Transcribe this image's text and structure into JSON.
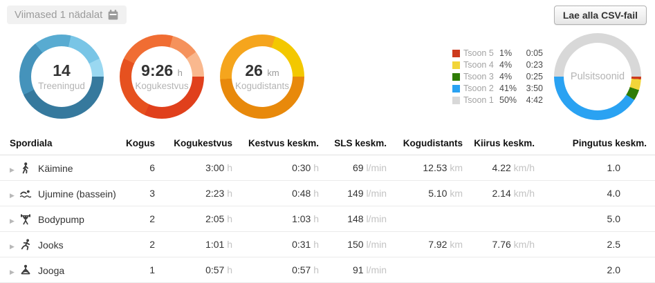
{
  "toolbar": {
    "period_label": "Viimased 1 nädalat",
    "download_button": "Lae alla CSV-fail"
  },
  "summary_donuts": [
    {
      "id": "trainings",
      "value": "14",
      "unit": "",
      "label": "Treeningud",
      "segments": [
        {
          "pct": 42.9,
          "color": "#36799d"
        },
        {
          "pct": 21.4,
          "color": "#4593bb"
        },
        {
          "pct": 14.3,
          "color": "#58abd1"
        },
        {
          "pct": 14.3,
          "color": "#79c5e6"
        },
        {
          "pct": 7.1,
          "color": "#9ad8f1"
        }
      ]
    },
    {
      "id": "total-duration",
      "value": "9:26",
      "unit": "h",
      "label": "Kogukestvus",
      "segments": [
        {
          "pct": 31.8,
          "color": "#e0401c"
        },
        {
          "pct": 25.3,
          "color": "#e6511f"
        },
        {
          "pct": 22.1,
          "color": "#f06d33"
        },
        {
          "pct": 10.8,
          "color": "#f5925c"
        },
        {
          "pct": 10.0,
          "color": "#f9b88e"
        }
      ]
    },
    {
      "id": "total-distance",
      "value": "26",
      "unit": "km",
      "label": "Kogudistants",
      "segments": [
        {
          "pct": 49.0,
          "color": "#e8890b"
        },
        {
          "pct": 31.0,
          "color": "#f5a51d"
        },
        {
          "pct": 20.0,
          "color": "#f3c800"
        }
      ]
    }
  ],
  "pulse_zones": {
    "label": "Pulsitsoonid",
    "zones": [
      {
        "name": "Tsoon 5",
        "pct": "1%",
        "time": "0:05",
        "color": "#cd3a1d"
      },
      {
        "name": "Tsoon 4",
        "pct": "4%",
        "time": "0:23",
        "color": "#f2d53a"
      },
      {
        "name": "Tsoon 3",
        "pct": "4%",
        "time": "0:25",
        "color": "#2e7c05"
      },
      {
        "name": "Tsoon 2",
        "pct": "41%",
        "time": "3:50",
        "color": "#2aa2f2"
      },
      {
        "name": "Tsoon 1",
        "pct": "50%",
        "time": "4:42",
        "color": "#d8d8d8"
      }
    ]
  },
  "table": {
    "columns": [
      "Spordiala",
      "Kogus",
      "Kogukestvus",
      "Kestvus keskm.",
      "SLS keskm.",
      "Kogudistants",
      "Kiirus keskm.",
      "Pingutus keskm."
    ],
    "units": {
      "time": "h",
      "sls": "l/min",
      "distance": "km",
      "speed": "km/h"
    },
    "rows": [
      {
        "sport": "Käimine",
        "icon": "walking-icon",
        "kogus": "6",
        "kogukestvus": "3:00",
        "kestvus_keskm": "0:30",
        "sls_keskm": "69",
        "kogudistants": "12.53",
        "kiirus_keskm": "4.22",
        "pingutus_keskm": "1.0"
      },
      {
        "sport": "Ujumine (bassein)",
        "icon": "swimming-icon",
        "kogus": "3",
        "kogukestvus": "2:23",
        "kestvus_keskm": "0:48",
        "sls_keskm": "149",
        "kogudistants": "5.10",
        "kiirus_keskm": "2.14",
        "pingutus_keskm": "4.0"
      },
      {
        "sport": "Bodypump",
        "icon": "weightlifting-icon",
        "kogus": "2",
        "kogukestvus": "2:05",
        "kestvus_keskm": "1:03",
        "sls_keskm": "148",
        "kogudistants": "",
        "kiirus_keskm": "",
        "pingutus_keskm": "5.0"
      },
      {
        "sport": "Jooks",
        "icon": "running-icon",
        "kogus": "2",
        "kogukestvus": "1:01",
        "kestvus_keskm": "0:31",
        "sls_keskm": "150",
        "kogudistants": "7.92",
        "kiirus_keskm": "7.76",
        "pingutus_keskm": "2.5"
      },
      {
        "sport": "Jooga",
        "icon": "yoga-icon",
        "kogus": "1",
        "kogukestvus": "0:57",
        "kestvus_keskm": "0:57",
        "sls_keskm": "91",
        "kogudistants": "",
        "kiirus_keskm": "",
        "pingutus_keskm": "2.0"
      }
    ]
  }
}
